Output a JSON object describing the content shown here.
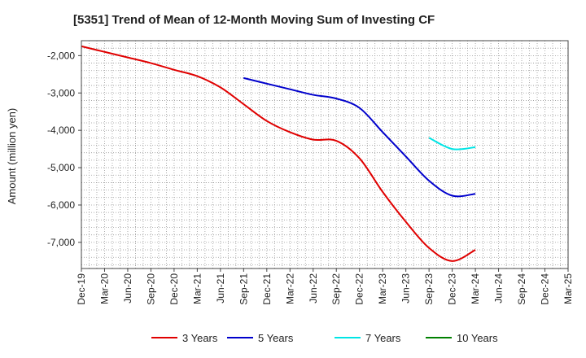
{
  "chart_data": {
    "type": "line",
    "title": "[5351]  Trend of Mean of 12-Month Moving Sum of Investing CF",
    "ylabel": "Amount (million yen)",
    "xlabel": "",
    "ylim": [
      -7700,
      -1600
    ],
    "yticks": [
      -2000,
      -3000,
      -4000,
      -5000,
      -6000,
      -7000
    ],
    "ytick_labels": [
      "-2,000",
      "-3,000",
      "-4,000",
      "-5,000",
      "-6,000",
      "-7,000"
    ],
    "x_ticks": [
      "Dec-19",
      "Mar-20",
      "Jun-20",
      "Sep-20",
      "Dec-20",
      "Mar-21",
      "Jun-21",
      "Sep-21",
      "Dec-21",
      "Mar-22",
      "Jun-22",
      "Sep-22",
      "Dec-22",
      "Mar-23",
      "Jun-23",
      "Sep-23",
      "Dec-23",
      "Mar-24",
      "Jun-24",
      "Sep-24",
      "Dec-24",
      "Mar-25"
    ],
    "grid": true,
    "legend_position": "bottom",
    "series": [
      {
        "name": "3 Years",
        "color": "#e00000",
        "start_index": 0,
        "values": [
          -1750,
          -1900,
          -2050,
          -2200,
          -2380,
          -2550,
          -2850,
          -3300,
          -3750,
          -4050,
          -4250,
          -4280,
          -4750,
          -5650,
          -6450,
          -7150,
          -7500,
          -7200
        ]
      },
      {
        "name": "5 Years",
        "color": "#0000cc",
        "start_index": 7,
        "values": [
          -2600,
          -2750,
          -2900,
          -3050,
          -3150,
          -3400,
          -4050,
          -4700,
          -5350,
          -5750,
          -5700
        ]
      },
      {
        "name": "7 Years",
        "color": "#00e5e5",
        "start_index": 15,
        "values": [
          -4200,
          -4500,
          -4450
        ]
      },
      {
        "name": "10 Years",
        "color": "#008000",
        "start_index": 0,
        "values": []
      }
    ]
  }
}
